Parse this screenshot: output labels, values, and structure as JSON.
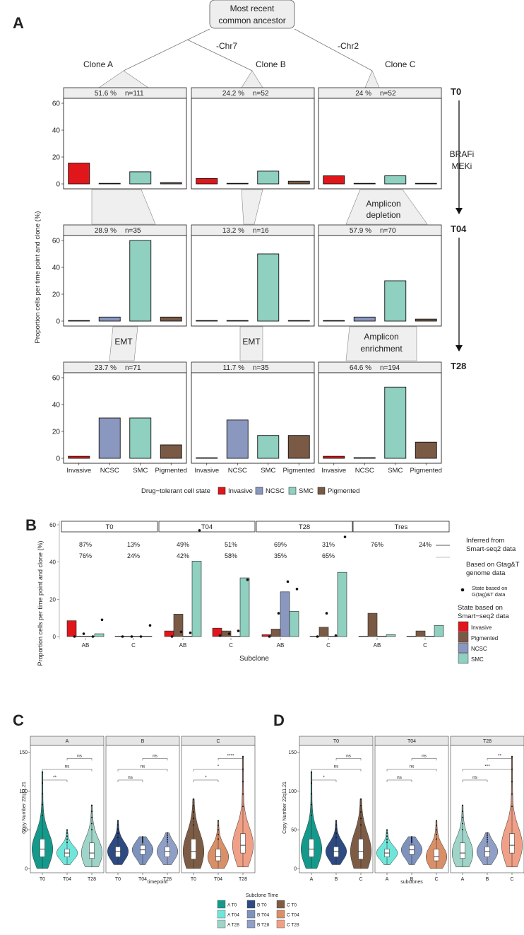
{
  "panel_letters": {
    "a": "A",
    "b": "B",
    "c": "C",
    "d": "D"
  },
  "colors": {
    "invasive": "#e0161b",
    "ncsc": "#8a97bf",
    "smc": "#8fd0c0",
    "pigmented": "#7a5a45",
    "a_t0": "#14998a",
    "a_t04": "#6fe6da",
    "a_t28": "#9fd4c8",
    "b_t0": "#2e4a82",
    "b_t04": "#7d93bd",
    "b_t28": "#8f9fc6",
    "c_t0": "#7d5c45",
    "c_t04": "#d98f67",
    "c_t28": "#f0a086"
  },
  "panel_a": {
    "tree": {
      "root": [
        "Most recent",
        "common ancestor"
      ],
      "chr7": "-Chr7",
      "chr2": "-Chr2",
      "clones": [
        "Clone A",
        "Clone B",
        "Clone C"
      ]
    },
    "timepoints": [
      "T0",
      "T04",
      "T28"
    ],
    "treatment": [
      "BRAFi",
      "MEKi"
    ],
    "annotations": {
      "amplicon_depletion": [
        "Amplicon",
        "depletion"
      ],
      "emt": "EMT",
      "amplicon_enrichment": [
        "Amplicon",
        "enrichment"
      ]
    },
    "ylabel": "Proportion cells per time point and clone (%)",
    "legend_title": "Drug−tolerant cell state",
    "chart_data": {
      "type": "bar",
      "categories": [
        "Invasive",
        "NCSC",
        "SMC",
        "Pigmented"
      ],
      "ylim": [
        0,
        65
      ],
      "yticks": [
        0,
        20,
        40,
        60
      ],
      "facets": [
        {
          "row": "T0",
          "clone": "A",
          "strip_pct": "51.6 %",
          "strip_n": "n=111",
          "values": [
            15.5,
            0,
            9,
            1
          ]
        },
        {
          "row": "T0",
          "clone": "B",
          "strip_pct": "24.2 %",
          "strip_n": "n=52",
          "values": [
            4,
            0,
            9.5,
            2
          ]
        },
        {
          "row": "T0",
          "clone": "C",
          "strip_pct": "24 %",
          "strip_n": "n=52",
          "values": [
            6,
            0,
            6,
            0
          ]
        },
        {
          "row": "T04",
          "clone": "A",
          "strip_pct": "28.9 %",
          "strip_n": "n=35",
          "values": [
            0,
            3,
            60,
            3
          ]
        },
        {
          "row": "T04",
          "clone": "B",
          "strip_pct": "13.2 %",
          "strip_n": "n=16",
          "values": [
            0,
            0,
            50,
            0
          ]
        },
        {
          "row": "T04",
          "clone": "C",
          "strip_pct": "57.9 %",
          "strip_n": "n=70",
          "values": [
            0,
            3,
            30,
            1.5
          ]
        },
        {
          "row": "T28",
          "clone": "A",
          "strip_pct": "23.7 %",
          "strip_n": "n=71",
          "values": [
            1.5,
            30,
            30,
            10
          ]
        },
        {
          "row": "T28",
          "clone": "B",
          "strip_pct": "11.7 %",
          "strip_n": "n=35",
          "values": [
            0,
            28.5,
            17,
            17
          ]
        },
        {
          "row": "T28",
          "clone": "C",
          "strip_pct": "64.6 %",
          "strip_n": "n=194",
          "values": [
            1.5,
            0.5,
            53,
            12
          ]
        }
      ]
    }
  },
  "panel_b": {
    "ylabel": "Proportion cells per time point and clone (%)",
    "xlabel": "Subclone",
    "notes": {
      "inferred": [
        "Inferred from",
        "Smart-seq2 data"
      ],
      "gtag": [
        "Based on Gtag&T",
        "genome data"
      ],
      "dot": [
        "State based on",
        "G(tag)&T data"
      ]
    },
    "legend_title": [
      "State based on",
      "Smart−seq2 data"
    ],
    "chart_data": {
      "type": "bar",
      "series_names": [
        "Invasive",
        "Pigmented",
        "NCSC",
        "SMC"
      ],
      "ylim": [
        0,
        62
      ],
      "yticks": [
        0,
        20,
        40,
        60
      ],
      "subclones": [
        "AB",
        "C"
      ],
      "facets": [
        {
          "label": "T0",
          "pct_smart": [
            "87%",
            "13%"
          ],
          "pct_gtag": [
            "76%",
            "24%"
          ],
          "bars": [
            [
              8.5,
              0,
              0,
              1.5
            ],
            [
              0,
              0,
              0,
              0
            ]
          ],
          "dots": [
            [
              0,
              1.5,
              0,
              9
            ],
            [
              0,
              0,
              0,
              6
            ]
          ]
        },
        {
          "label": "T04",
          "pct_smart": [
            "49%",
            "51%"
          ],
          "pct_gtag": [
            "42%",
            "58%"
          ],
          "bars": [
            [
              3,
              12,
              0,
              40.5
            ],
            [
              4.5,
              3,
              0,
              31.5
            ]
          ],
          "dots": [
            [
              0,
              2.5,
              2,
              57
            ],
            [
              0.5,
              1.5,
              3,
              30.5
            ]
          ]
        },
        {
          "label": "T28",
          "pct_smart": [
            "69%",
            "31%"
          ],
          "pct_gtag": [
            "35%",
            "65%"
          ],
          "bars": [
            [
              1,
              4,
              24,
              13.5
            ],
            [
              0,
              5,
              0,
              34.5
            ]
          ],
          "dots": [
            [
              0,
              12.5,
              29.5,
              25.5
            ],
            [
              0,
              12.5,
              0.5,
              53.5
            ]
          ]
        },
        {
          "label": "Tres",
          "pct_smart": [
            "76%",
            "24%"
          ],
          "pct_gtag": [
            "",
            ""
          ],
          "bars": [
            [
              0,
              12.5,
              0,
              1
            ],
            [
              0,
              3,
              0,
              6
            ]
          ],
          "dots": [
            [
              null,
              null,
              null,
              null
            ],
            [
              null,
              null,
              null,
              null
            ]
          ]
        }
      ]
    }
  },
  "panel_c": {
    "ylabel": "Copy Number 22q11.21",
    "xlabel": "timepoint",
    "chart_data": {
      "type": "violin",
      "ylim": [
        0,
        150
      ],
      "yticks": [
        0,
        50,
        100,
        150
      ],
      "facets": [
        {
          "label": "A",
          "groups": [
            {
              "x": "T0",
              "key": "a_t0",
              "q1": 15,
              "med": 25,
              "q3": 38,
              "min": 0,
              "max": 125
            },
            {
              "x": "T04",
              "key": "a_t04",
              "q1": 15,
              "med": 20,
              "q3": 25,
              "min": 5,
              "max": 50
            },
            {
              "x": "T28",
              "key": "a_t28",
              "q1": 13,
              "med": 20,
              "q3": 33,
              "min": 2,
              "max": 82
            }
          ],
          "sig": [
            {
              "from": 1,
              "to": 2,
              "label": "ns",
              "y": 142
            },
            {
              "from": 0,
              "to": 2,
              "label": "ns",
              "y": 128
            },
            {
              "from": 0,
              "to": 1,
              "label": "**",
              "y": 114
            }
          ]
        },
        {
          "label": "B",
          "groups": [
            {
              "x": "T0",
              "key": "b_t0",
              "q1": 15,
              "med": 22,
              "q3": 28,
              "min": 5,
              "max": 62
            },
            {
              "x": "T04",
              "key": "b_t04",
              "q1": 18,
              "med": 24,
              "q3": 30,
              "min": 5,
              "max": 41
            },
            {
              "x": "T28",
              "key": "b_t28",
              "q1": 15,
              "med": 22,
              "q3": 28,
              "min": 5,
              "max": 46
            }
          ],
          "sig": [
            {
              "from": 1,
              "to": 2,
              "label": "ns",
              "y": 142
            },
            {
              "from": 0,
              "to": 2,
              "label": "ns",
              "y": 128
            },
            {
              "from": 0,
              "to": 1,
              "label": "ns",
              "y": 114
            }
          ]
        },
        {
          "label": "C",
          "groups": [
            {
              "x": "T0",
              "key": "c_t0",
              "q1": 12,
              "med": 22,
              "q3": 38,
              "min": 0,
              "max": 90
            },
            {
              "x": "T04",
              "key": "c_t04",
              "q1": 10,
              "med": 15,
              "q3": 25,
              "min": 0,
              "max": 62
            },
            {
              "x": "T28",
              "key": "c_t28",
              "q1": 20,
              "med": 30,
              "q3": 45,
              "min": 2,
              "max": 145
            }
          ],
          "sig": [
            {
              "from": 1,
              "to": 2,
              "label": "****",
              "y": 142
            },
            {
              "from": 0,
              "to": 2,
              "label": "*",
              "y": 128
            },
            {
              "from": 0,
              "to": 1,
              "label": "*",
              "y": 114
            }
          ]
        }
      ]
    }
  },
  "panel_d": {
    "ylabel": "Copy Number 22q11.21",
    "xlabel": "subclones",
    "chart_data": {
      "type": "violin",
      "ylim": [
        0,
        150
      ],
      "yticks": [
        0,
        50,
        100,
        150
      ],
      "facets": [
        {
          "label": "T0",
          "groups": [
            {
              "x": "A",
              "key": "a_t0",
              "q1": 15,
              "med": 25,
              "q3": 38,
              "min": 0,
              "max": 125
            },
            {
              "x": "B",
              "key": "b_t0",
              "q1": 15,
              "med": 22,
              "q3": 28,
              "min": 5,
              "max": 62
            },
            {
              "x": "C",
              "key": "c_t0",
              "q1": 12,
              "med": 22,
              "q3": 38,
              "min": 0,
              "max": 90
            }
          ],
          "sig": [
            {
              "from": 1,
              "to": 2,
              "label": "ns",
              "y": 142
            },
            {
              "from": 0,
              "to": 2,
              "label": "ns",
              "y": 128
            },
            {
              "from": 0,
              "to": 1,
              "label": "*",
              "y": 114
            }
          ]
        },
        {
          "label": "T04",
          "groups": [
            {
              "x": "A",
              "key": "a_t04",
              "q1": 15,
              "med": 20,
              "q3": 25,
              "min": 5,
              "max": 50
            },
            {
              "x": "B",
              "key": "b_t04",
              "q1": 18,
              "med": 24,
              "q3": 30,
              "min": 5,
              "max": 41
            },
            {
              "x": "C",
              "key": "c_t04",
              "q1": 10,
              "med": 15,
              "q3": 25,
              "min": 0,
              "max": 62
            }
          ],
          "sig": [
            {
              "from": 1,
              "to": 2,
              "label": "ns",
              "y": 142
            },
            {
              "from": 0,
              "to": 2,
              "label": "ns",
              "y": 128
            },
            {
              "from": 0,
              "to": 1,
              "label": "ns",
              "y": 114
            }
          ]
        },
        {
          "label": "T28",
          "groups": [
            {
              "x": "A",
              "key": "a_t28",
              "q1": 13,
              "med": 20,
              "q3": 33,
              "min": 2,
              "max": 82
            },
            {
              "x": "B",
              "key": "b_t28",
              "q1": 15,
              "med": 22,
              "q3": 28,
              "min": 5,
              "max": 46
            },
            {
              "x": "C",
              "key": "c_t28",
              "q1": 20,
              "med": 30,
              "q3": 45,
              "min": 2,
              "max": 145
            }
          ],
          "sig": [
            {
              "from": 1,
              "to": 2,
              "label": "**",
              "y": 142
            },
            {
              "from": 0,
              "to": 2,
              "label": "***",
              "y": 128
            },
            {
              "from": 0,
              "to": 1,
              "label": "ns",
              "y": 114
            }
          ]
        }
      ]
    }
  },
  "legend_cd": {
    "title": "Subclone Time",
    "items": [
      {
        "key": "a_t0",
        "label": "A T0"
      },
      {
        "key": "b_t0",
        "label": "B T0"
      },
      {
        "key": "c_t0",
        "label": "C T0"
      },
      {
        "key": "a_t04",
        "label": "A T04"
      },
      {
        "key": "b_t04",
        "label": "B T04"
      },
      {
        "key": "c_t04",
        "label": "C T04"
      },
      {
        "key": "a_t28",
        "label": "A T28"
      },
      {
        "key": "b_t28",
        "label": "B T28"
      },
      {
        "key": "c_t28",
        "label": "C T28"
      }
    ]
  }
}
